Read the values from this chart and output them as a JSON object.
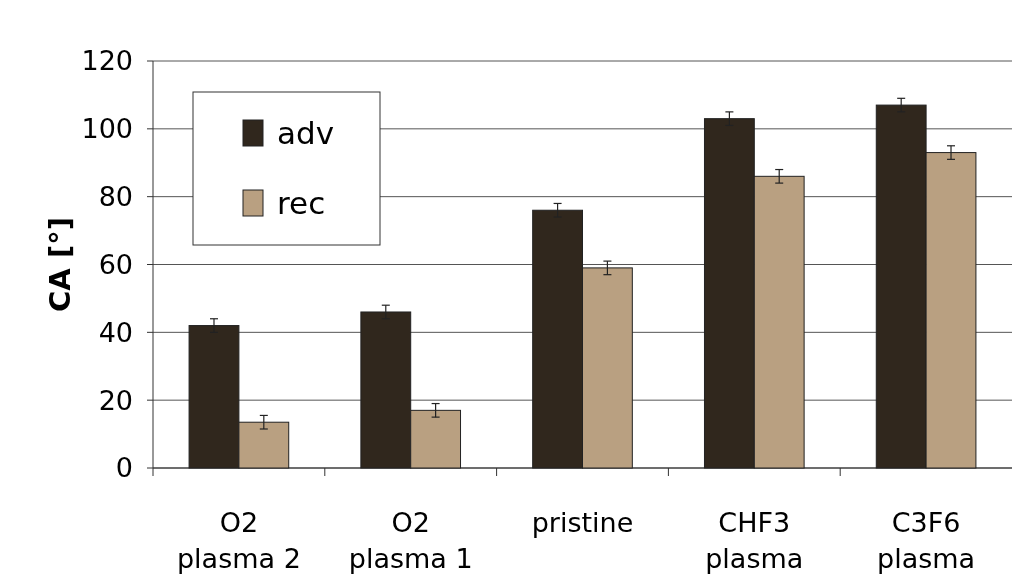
{
  "chart_data": {
    "type": "bar",
    "ylabel": "CA [°]",
    "categories": [
      "O2 plasma 2",
      "O2 plasma 1",
      "pristine",
      "CHF3 plasma",
      "C3F6 plasma"
    ],
    "series": [
      {
        "name": "adv",
        "color": "#30271d",
        "values": [
          42,
          46,
          76,
          103,
          107
        ],
        "errors": [
          2,
          2,
          2,
          2,
          2
        ]
      },
      {
        "name": "rec",
        "color": "#b9a081",
        "values": [
          13.5,
          17,
          59,
          86,
          93
        ],
        "errors": [
          2,
          2,
          2,
          2,
          2
        ]
      }
    ],
    "ylim": [
      0,
      120
    ],
    "yticks": [
      0,
      20,
      40,
      60,
      80,
      100,
      120
    ],
    "grid": "y",
    "legend": "top left"
  }
}
